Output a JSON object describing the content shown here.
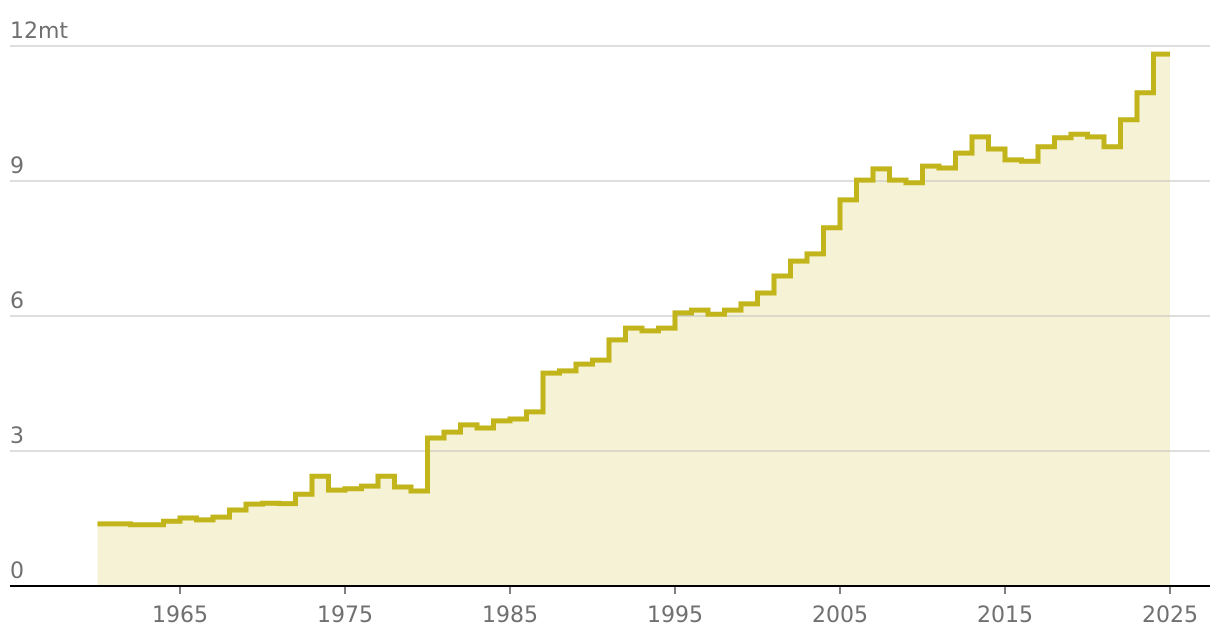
{
  "chart_data": {
    "type": "step",
    "x": [
      1960,
      1961,
      1962,
      1963,
      1964,
      1965,
      1966,
      1967,
      1968,
      1969,
      1970,
      1971,
      1972,
      1973,
      1974,
      1975,
      1976,
      1977,
      1978,
      1979,
      1980,
      1981,
      1982,
      1983,
      1984,
      1985,
      1986,
      1987,
      1988,
      1989,
      1990,
      1991,
      1992,
      1993,
      1994,
      1995,
      1996,
      1997,
      1998,
      1999,
      2000,
      2001,
      2002,
      2003,
      2004,
      2005,
      2006,
      2007,
      2008,
      2009,
      2010,
      2011,
      2012,
      2013,
      2014,
      2015,
      2016,
      2017,
      2018,
      2019,
      2020,
      2021,
      2022,
      2023,
      2024
    ],
    "series": [
      {
        "color": "#c2b51c",
        "fill": "#f6f2d6",
        "values": [
          1.38,
          1.38,
          1.36,
          1.36,
          1.44,
          1.51,
          1.47,
          1.53,
          1.69,
          1.82,
          1.84,
          1.83,
          2.04,
          2.44,
          2.13,
          2.16,
          2.22,
          2.44,
          2.2,
          2.11,
          3.29,
          3.42,
          3.58,
          3.51,
          3.67,
          3.71,
          3.87,
          4.73,
          4.78,
          4.93,
          5.02,
          5.47,
          5.73,
          5.67,
          5.73,
          6.07,
          6.13,
          6.04,
          6.13,
          6.27,
          6.51,
          6.89,
          7.22,
          7.38,
          7.96,
          8.58,
          9.02,
          9.27,
          9.02,
          8.96,
          9.33,
          9.29,
          9.62,
          9.98,
          9.71,
          9.47,
          9.44,
          9.76,
          9.96,
          10.04,
          9.98,
          9.76,
          10.36,
          10.96,
          11.82
        ]
      }
    ],
    "xlim": [
      1960,
      2025
    ],
    "xticks": [
      1965,
      1975,
      1985,
      1995,
      2005,
      2015,
      2025
    ],
    "ylim": [
      0,
      12
    ],
    "yticks": [
      0,
      3,
      6,
      9,
      {
        "value": 12,
        "label": "12mt"
      }
    ],
    "grid": true
  }
}
